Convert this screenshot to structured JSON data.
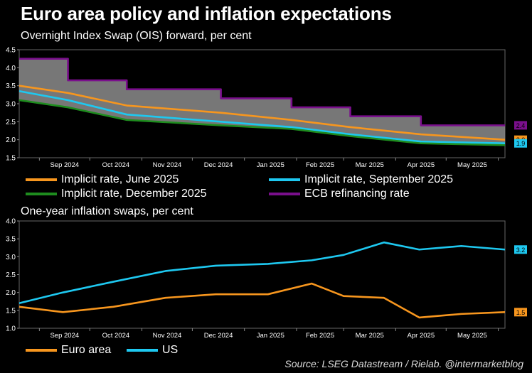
{
  "title": "Euro area policy and inflation expectations",
  "source": "Source: LSEG Datastream / Rielab. @intermarketblog",
  "colors": {
    "june": "#f7961e",
    "september": "#1ec8f0",
    "december": "#1e8c1e",
    "ecb": "#7a0f8c",
    "band": "#8c8c8c"
  },
  "chart_data": [
    {
      "type": "line",
      "title": "Overnight Index Swap (OIS) forward, per cent",
      "x_labels": [
        "Sep 2024",
        "Oct 2024",
        "Nov 2024",
        "Dec 2024",
        "Jan 2025",
        "Feb 2025",
        "Mar 2025",
        "Apr 2025",
        "May 2025"
      ],
      "x_range": [
        "2024-08-20",
        "2025-06-05"
      ],
      "ylim": [
        1.5,
        4.5
      ],
      "yticks": [
        "1.5",
        "2.0",
        "2.5",
        "3.0",
        "3.5",
        "4.0",
        "4.5"
      ],
      "x": [
        "2024-08-20",
        "2024-09-18",
        "2024-10-23",
        "2024-12-18",
        "2025-01-29",
        "2025-03-05",
        "2025-04-16",
        "2025-06-05"
      ],
      "series": [
        {
          "name": "Implicit rate, June 2025",
          "color_key": "june",
          "values": [
            3.5,
            3.3,
            2.95,
            2.75,
            2.55,
            2.35,
            2.15,
            2.0
          ],
          "end_label": "2.0"
        },
        {
          "name": "Implicit rate, September 2025",
          "color_key": "september",
          "values": [
            3.35,
            3.1,
            2.7,
            2.5,
            2.35,
            2.15,
            1.95,
            1.9
          ],
          "end_label": "1.9"
        },
        {
          "name": "Implicit rate, December 2025",
          "color_key": "december",
          "values": [
            3.1,
            2.9,
            2.55,
            2.4,
            2.3,
            2.1,
            1.9,
            1.85
          ]
        },
        {
          "name": "ECB refinancing rate",
          "color_key": "ecb",
          "values": [
            4.25,
            3.65,
            3.4,
            3.15,
            2.9,
            2.65,
            2.4,
            2.4
          ],
          "end_label": "2.4",
          "step": true
        }
      ],
      "legend": "bottom"
    },
    {
      "type": "line",
      "title": "One-year inflation swaps, per cent",
      "x_labels": [
        "Sep 2024",
        "Oct 2024",
        "Nov 2024",
        "Dec 2024",
        "Jan 2025",
        "Feb 2025",
        "Mar 2025",
        "Apr 2025",
        "May 2025"
      ],
      "x_range": [
        "2024-08-20",
        "2025-06-05"
      ],
      "ylim": [
        1.0,
        4.0
      ],
      "yticks": [
        "1.0",
        "1.5",
        "2.0",
        "2.5",
        "3.0",
        "3.5",
        "4.0"
      ],
      "x": [
        "2024-08-20",
        "2024-09-15",
        "2024-10-15",
        "2024-11-15",
        "2024-12-15",
        "2025-01-15",
        "2025-02-10",
        "2025-03-01",
        "2025-03-25",
        "2025-04-15",
        "2025-05-10",
        "2025-06-05"
      ],
      "series": [
        {
          "name": "Euro area",
          "color_key": "june",
          "values": [
            1.6,
            1.45,
            1.6,
            1.85,
            1.95,
            1.95,
            2.25,
            1.9,
            1.85,
            1.3,
            1.4,
            1.45
          ],
          "end_label": "1.5"
        },
        {
          "name": "US",
          "color_key": "september",
          "values": [
            1.7,
            2.0,
            2.3,
            2.6,
            2.75,
            2.8,
            2.9,
            3.05,
            3.4,
            3.2,
            3.3,
            3.2
          ],
          "end_label": "3.2"
        }
      ],
      "legend": "bottom"
    }
  ]
}
